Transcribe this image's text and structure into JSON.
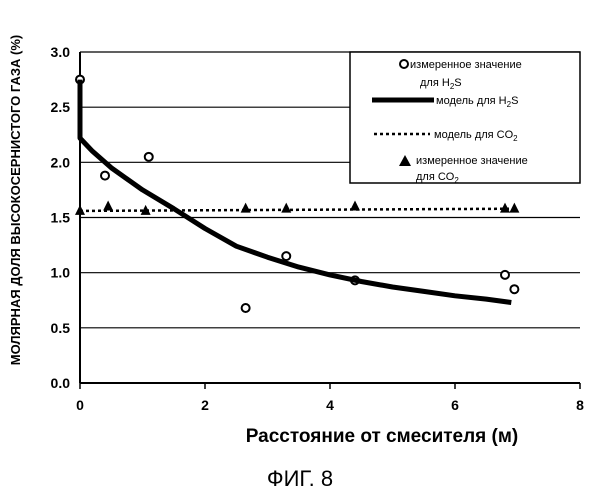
{
  "chart_data": {
    "type": "line",
    "ylabel": "МОЛЯРНАЯ ДОЛЯ ВЫСОКОСЕРНИСТОГО ГАЗА (%)",
    "xlabel": "Расстояние от смесителя (м)",
    "xlim": [
      0,
      8
    ],
    "ylim": [
      0,
      3
    ],
    "x_ticks": [
      "0",
      "2",
      "4",
      "6",
      "8"
    ],
    "y_ticks": [
      "0.0",
      "0.5",
      "1.0",
      "1.5",
      "2.0",
      "2.5",
      "3.0"
    ],
    "grid": "horizontal",
    "legend_position": "top-right",
    "series": [
      {
        "name": "измеренное значение для H2S",
        "marker": "open-circle",
        "x": [
          0.0,
          0.4,
          1.1,
          2.65,
          3.3,
          4.4,
          6.8,
          6.95
        ],
        "y": [
          2.75,
          1.88,
          2.05,
          0.68,
          1.15,
          0.93,
          0.98,
          0.85
        ]
      },
      {
        "name": "модель для H2S",
        "style": "thick-solid",
        "x": [
          0.0,
          0.0,
          0.2,
          0.5,
          1.0,
          1.5,
          2.0,
          2.5,
          3.0,
          3.5,
          4.0,
          4.5,
          5.0,
          5.5,
          6.0,
          6.5,
          6.9
        ],
        "y": [
          2.75,
          2.22,
          2.1,
          1.95,
          1.75,
          1.58,
          1.4,
          1.24,
          1.14,
          1.05,
          0.98,
          0.92,
          0.87,
          0.83,
          0.79,
          0.76,
          0.73
        ]
      },
      {
        "name": "модель для CO2",
        "style": "dotted",
        "x": [
          0.0,
          7.0
        ],
        "y": [
          1.56,
          1.58
        ]
      },
      {
        "name": "измеренное значение для CO2",
        "marker": "filled-triangle",
        "x": [
          0.0,
          0.45,
          1.05,
          2.65,
          3.3,
          4.4,
          6.8,
          6.95
        ],
        "y": [
          1.56,
          1.6,
          1.56,
          1.58,
          1.58,
          1.6,
          1.58,
          1.58
        ]
      }
    ]
  },
  "legend": {
    "h2s_measured_line1": "измеренное значение",
    "h2s_measured_line2_prefix": "для ",
    "h2s_model_prefix": "модель для ",
    "co2_model_prefix": "модель для ",
    "co2_measured_line1": "измеренное значение",
    "co2_measured_line2_prefix": "для ",
    "h2s_formula": "H",
    "h2s_sub": "2",
    "h2s_tail": "S",
    "co2_formula": "CO",
    "co2_sub": "2"
  },
  "figure_label": "ФИГ. 8"
}
